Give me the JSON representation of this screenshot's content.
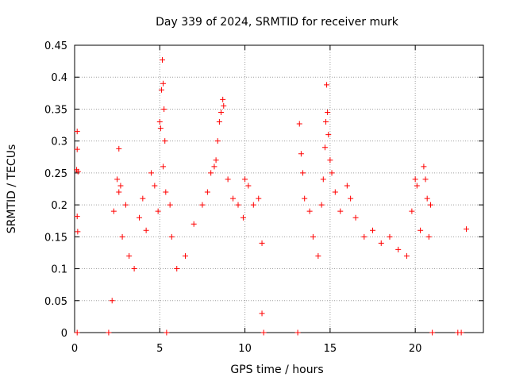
{
  "chart_data": {
    "type": "scatter",
    "title": "Day 339 of 2024, SRMTID for receiver murk",
    "xlabel": "GPS time / hours",
    "ylabel": "SRMTID / TECUs",
    "xlim": [
      0,
      24
    ],
    "ylim": [
      0,
      0.45
    ],
    "x_ticks": [
      0,
      5,
      10,
      15,
      20
    ],
    "x_tick_labels": [
      "0",
      "5",
      "10",
      "15",
      "20"
    ],
    "y_ticks": [
      0,
      0.05,
      0.1,
      0.15,
      0.2,
      0.25,
      0.3,
      0.35,
      0.4,
      0.45
    ],
    "y_tick_labels": [
      "0",
      "0.05",
      "0.1",
      "0.15",
      "0.2",
      "0.25",
      "0.3",
      "0.35",
      "0.4",
      "0.45"
    ],
    "grid": true,
    "series": [
      {
        "name": "SRMTID",
        "color": "#ff0000",
        "marker": "plus",
        "points": [
          [
            0.15,
            0.315
          ],
          [
            0.15,
            0.287
          ],
          [
            0.12,
            0.255
          ],
          [
            0.2,
            0.252
          ],
          [
            0.15,
            0.182
          ],
          [
            0.18,
            0.158
          ],
          [
            0.15,
            0.0
          ],
          [
            2.0,
            0.0
          ],
          [
            2.2,
            0.05
          ],
          [
            2.3,
            0.19
          ],
          [
            2.5,
            0.24
          ],
          [
            2.6,
            0.288
          ],
          [
            2.6,
            0.22
          ],
          [
            2.7,
            0.23
          ],
          [
            2.8,
            0.15
          ],
          [
            3.0,
            0.2
          ],
          [
            3.2,
            0.12
          ],
          [
            3.5,
            0.1
          ],
          [
            3.8,
            0.18
          ],
          [
            4.0,
            0.21
          ],
          [
            4.2,
            0.16
          ],
          [
            4.5,
            0.25
          ],
          [
            4.7,
            0.23
          ],
          [
            4.9,
            0.19
          ],
          [
            5.0,
            0.33
          ],
          [
            5.05,
            0.32
          ],
          [
            5.1,
            0.38
          ],
          [
            5.15,
            0.427
          ],
          [
            5.2,
            0.39
          ],
          [
            5.25,
            0.35
          ],
          [
            5.3,
            0.3
          ],
          [
            5.2,
            0.26
          ],
          [
            5.35,
            0.22
          ],
          [
            5.4,
            0.0
          ],
          [
            5.6,
            0.2
          ],
          [
            5.7,
            0.15
          ],
          [
            6.0,
            0.1
          ],
          [
            6.5,
            0.12
          ],
          [
            7.0,
            0.17
          ],
          [
            7.5,
            0.2
          ],
          [
            7.8,
            0.22
          ],
          [
            8.0,
            0.25
          ],
          [
            8.2,
            0.26
          ],
          [
            8.3,
            0.27
          ],
          [
            8.4,
            0.3
          ],
          [
            8.5,
            0.33
          ],
          [
            8.6,
            0.345
          ],
          [
            8.7,
            0.365
          ],
          [
            8.75,
            0.355
          ],
          [
            9.0,
            0.24
          ],
          [
            9.3,
            0.21
          ],
          [
            9.6,
            0.2
          ],
          [
            9.9,
            0.18
          ],
          [
            10.0,
            0.24
          ],
          [
            10.2,
            0.23
          ],
          [
            10.5,
            0.2
          ],
          [
            10.8,
            0.21
          ],
          [
            11.0,
            0.14
          ],
          [
            11.0,
            0.03
          ],
          [
            11.1,
            0.0
          ],
          [
            13.1,
            0.0
          ],
          [
            13.2,
            0.327
          ],
          [
            13.3,
            0.28
          ],
          [
            13.4,
            0.25
          ],
          [
            13.5,
            0.21
          ],
          [
            13.8,
            0.19
          ],
          [
            14.0,
            0.15
          ],
          [
            14.3,
            0.12
          ],
          [
            14.5,
            0.2
          ],
          [
            14.6,
            0.24
          ],
          [
            14.7,
            0.29
          ],
          [
            14.75,
            0.33
          ],
          [
            14.8,
            0.388
          ],
          [
            14.85,
            0.345
          ],
          [
            14.9,
            0.31
          ],
          [
            15.0,
            0.27
          ],
          [
            15.1,
            0.25
          ],
          [
            15.3,
            0.22
          ],
          [
            15.6,
            0.19
          ],
          [
            16.0,
            0.23
          ],
          [
            16.2,
            0.21
          ],
          [
            16.5,
            0.18
          ],
          [
            17.0,
            0.15
          ],
          [
            17.5,
            0.16
          ],
          [
            18.0,
            0.14
          ],
          [
            18.5,
            0.15
          ],
          [
            19.0,
            0.13
          ],
          [
            19.5,
            0.12
          ],
          [
            19.8,
            0.19
          ],
          [
            20.0,
            0.24
          ],
          [
            20.1,
            0.23
          ],
          [
            20.3,
            0.16
          ],
          [
            20.5,
            0.26
          ],
          [
            20.6,
            0.24
          ],
          [
            20.7,
            0.21
          ],
          [
            20.8,
            0.15
          ],
          [
            20.9,
            0.2
          ],
          [
            21.0,
            0.0
          ],
          [
            22.5,
            0.0
          ],
          [
            22.7,
            0.0
          ],
          [
            23.0,
            0.162
          ]
        ]
      }
    ]
  }
}
